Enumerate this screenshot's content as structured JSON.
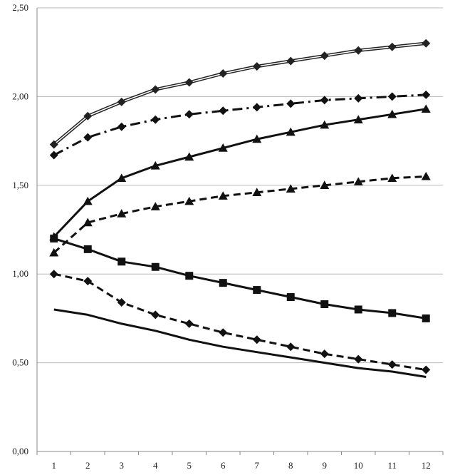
{
  "chart_data": {
    "type": "line",
    "title": "",
    "xlabel": "",
    "ylabel": "",
    "x": [
      1,
      2,
      3,
      4,
      5,
      6,
      7,
      8,
      9,
      10,
      11,
      12
    ],
    "x_tick_labels": [
      "1",
      "2",
      "3",
      "4",
      "5",
      "6",
      "7",
      "8",
      "9",
      "10",
      "11",
      "12"
    ],
    "ylim": [
      0,
      2.5
    ],
    "y_ticks": [
      0,
      0.5,
      1.0,
      1.5,
      2.0,
      2.5
    ],
    "y_tick_labels": [
      "0,00",
      "0,50",
      "1,00",
      "1,50",
      "2,00",
      "2,50"
    ],
    "grid": "horizontal",
    "legend": "none",
    "series": [
      {
        "style": "double",
        "marker": "diamond",
        "color": "#222222",
        "values": [
          1.73,
          1.89,
          1.97,
          2.04,
          2.08,
          2.13,
          2.17,
          2.2,
          2.23,
          2.26,
          2.28,
          2.3
        ]
      },
      {
        "style": "dashdot",
        "marker": "diamond",
        "color": "#111111",
        "values": [
          1.67,
          1.77,
          1.83,
          1.87,
          1.9,
          1.92,
          1.94,
          1.96,
          1.98,
          1.99,
          2.0,
          2.01
        ]
      },
      {
        "style": "solid",
        "marker": "triangle",
        "color": "#111111",
        "values": [
          1.21,
          1.41,
          1.54,
          1.61,
          1.66,
          1.71,
          1.76,
          1.8,
          1.84,
          1.87,
          1.9,
          1.93
        ]
      },
      {
        "style": "dashed",
        "marker": "triangle",
        "color": "#111111",
        "values": [
          1.12,
          1.29,
          1.34,
          1.38,
          1.41,
          1.44,
          1.46,
          1.48,
          1.5,
          1.52,
          1.54,
          1.55
        ]
      },
      {
        "style": "solid",
        "marker": "square",
        "color": "#111111",
        "values": [
          1.2,
          1.14,
          1.07,
          1.04,
          0.99,
          0.95,
          0.91,
          0.87,
          0.83,
          0.8,
          0.78,
          0.75
        ]
      },
      {
        "style": "dashed",
        "marker": "diamond",
        "color": "#111111",
        "values": [
          1.0,
          0.96,
          0.84,
          0.77,
          0.72,
          0.67,
          0.63,
          0.59,
          0.55,
          0.52,
          0.49,
          0.46
        ]
      },
      {
        "style": "solid",
        "marker": "none",
        "color": "#111111",
        "values": [
          0.8,
          0.77,
          0.72,
          0.68,
          0.63,
          0.59,
          0.56,
          0.53,
          0.5,
          0.47,
          0.45,
          0.42
        ]
      }
    ]
  }
}
